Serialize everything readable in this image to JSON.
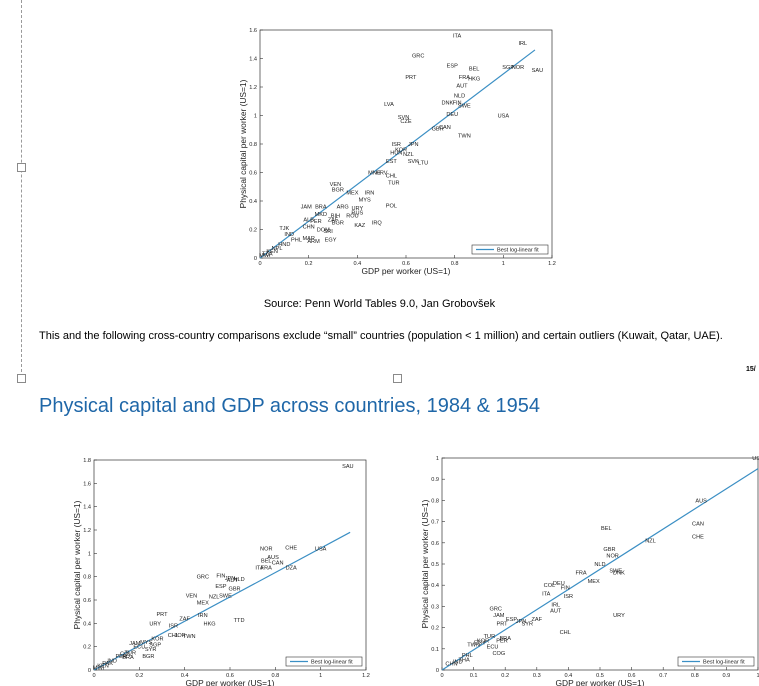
{
  "caption": "Source: Penn World Tables 9.0, Jan Grobovšek",
  "note": "This and the following cross-country comparisons exclude “small” countries (population < 1 million) and certain outliers (Kuwait, Qatar, UAE).",
  "page_number": "15/",
  "heading": "Physical capital and GDP across countries, 1984 & 1954",
  "colors": {
    "fit_line": "#3b8fc4",
    "heading": "#1f67a8"
  },
  "chart_data": [
    {
      "type": "scatter",
      "xlabel": "GDP per worker (US=1)",
      "ylabel": "Physical capital per worker (US=1)",
      "xlim": [
        0,
        1.2
      ],
      "ylim": [
        0,
        1.6
      ],
      "xticks": [
        "0",
        "0.2",
        "0.4",
        "0.6",
        "0.8",
        "1",
        "1.2"
      ],
      "yticks": [
        "0",
        "0.2",
        "0.4",
        "0.6",
        "0.8",
        "1",
        "1.2",
        "1.4",
        "1.6"
      ],
      "legend": "Best log-linear fit",
      "legend_position": "bottom-right",
      "fit": {
        "x": [
          0,
          1.13
        ],
        "y": [
          0,
          1.46
        ]
      },
      "points": [
        {
          "label": "ITA",
          "x": 0.81,
          "y": 1.56
        },
        {
          "label": "IRL",
          "x": 1.08,
          "y": 1.51
        },
        {
          "label": "GRC",
          "x": 0.65,
          "y": 1.42
        },
        {
          "label": "ESP",
          "x": 0.79,
          "y": 1.35
        },
        {
          "label": "BEL",
          "x": 0.88,
          "y": 1.33
        },
        {
          "label": "SGP",
          "x": 1.02,
          "y": 1.34
        },
        {
          "label": "NOR",
          "x": 1.06,
          "y": 1.34
        },
        {
          "label": "SAU",
          "x": 1.14,
          "y": 1.32
        },
        {
          "label": "PRT",
          "x": 0.62,
          "y": 1.27
        },
        {
          "label": "FRA",
          "x": 0.84,
          "y": 1.27
        },
        {
          "label": "HKG",
          "x": 0.88,
          "y": 1.26
        },
        {
          "label": "AUT",
          "x": 0.83,
          "y": 1.21
        },
        {
          "label": "NLD",
          "x": 0.82,
          "y": 1.14
        },
        {
          "label": "LVA",
          "x": 0.53,
          "y": 1.08
        },
        {
          "label": "DNK",
          "x": 0.77,
          "y": 1.09
        },
        {
          "label": "FIN",
          "x": 0.81,
          "y": 1.09
        },
        {
          "label": "SWE",
          "x": 0.84,
          "y": 1.07
        },
        {
          "label": "DEU",
          "x": 0.79,
          "y": 1.01
        },
        {
          "label": "USA",
          "x": 1.0,
          "y": 1.0
        },
        {
          "label": "SVN",
          "x": 0.59,
          "y": 0.99
        },
        {
          "label": "CZE",
          "x": 0.6,
          "y": 0.96
        },
        {
          "label": "GBR",
          "x": 0.73,
          "y": 0.91
        },
        {
          "label": "CAN",
          "x": 0.76,
          "y": 0.92
        },
        {
          "label": "TWN",
          "x": 0.84,
          "y": 0.86
        },
        {
          "label": "ISR",
          "x": 0.56,
          "y": 0.8
        },
        {
          "label": "JPN",
          "x": 0.63,
          "y": 0.8
        },
        {
          "label": "KOR",
          "x": 0.58,
          "y": 0.76
        },
        {
          "label": "HUN",
          "x": 0.56,
          "y": 0.74
        },
        {
          "label": "NZL",
          "x": 0.61,
          "y": 0.73
        },
        {
          "label": "EST",
          "x": 0.54,
          "y": 0.68
        },
        {
          "label": "SVK",
          "x": 0.63,
          "y": 0.68
        },
        {
          "label": "LTU",
          "x": 0.67,
          "y": 0.67
        },
        {
          "label": "MNE",
          "x": 0.47,
          "y": 0.6
        },
        {
          "label": "HRV",
          "x": 0.5,
          "y": 0.6
        },
        {
          "label": "CHL",
          "x": 0.54,
          "y": 0.58
        },
        {
          "label": "TUR",
          "x": 0.55,
          "y": 0.53
        },
        {
          "label": "VEN",
          "x": 0.31,
          "y": 0.52
        },
        {
          "label": "BGR",
          "x": 0.32,
          "y": 0.48
        },
        {
          "label": "MEX",
          "x": 0.38,
          "y": 0.46
        },
        {
          "label": "IRN",
          "x": 0.45,
          "y": 0.46
        },
        {
          "label": "MYS",
          "x": 0.43,
          "y": 0.41
        },
        {
          "label": "JAM",
          "x": 0.19,
          "y": 0.36
        },
        {
          "label": "BRA",
          "x": 0.25,
          "y": 0.36
        },
        {
          "label": "ARG",
          "x": 0.34,
          "y": 0.36
        },
        {
          "label": "URY",
          "x": 0.4,
          "y": 0.35
        },
        {
          "label": "POL",
          "x": 0.54,
          "y": 0.37
        },
        {
          "label": "MKD",
          "x": 0.25,
          "y": 0.31
        },
        {
          "label": "BIH",
          "x": 0.31,
          "y": 0.3
        },
        {
          "label": "ROU",
          "x": 0.38,
          "y": 0.3
        },
        {
          "label": "RUS",
          "x": 0.4,
          "y": 0.32
        },
        {
          "label": "ALB",
          "x": 0.2,
          "y": 0.27
        },
        {
          "label": "PER",
          "x": 0.23,
          "y": 0.26
        },
        {
          "label": "ZAF",
          "x": 0.3,
          "y": 0.27
        },
        {
          "label": "BGR",
          "x": 0.32,
          "y": 0.25
        },
        {
          "label": "KAZ",
          "x": 0.41,
          "y": 0.23
        },
        {
          "label": "IRQ",
          "x": 0.48,
          "y": 0.25
        },
        {
          "label": "TJK",
          "x": 0.1,
          "y": 0.21
        },
        {
          "label": "CHN",
          "x": 0.2,
          "y": 0.22
        },
        {
          "label": "DOM",
          "x": 0.26,
          "y": 0.2
        },
        {
          "label": "SRI",
          "x": 0.28,
          "y": 0.19
        },
        {
          "label": "IND",
          "x": 0.12,
          "y": 0.17
        },
        {
          "label": "PHL",
          "x": 0.15,
          "y": 0.13
        },
        {
          "label": "MAR",
          "x": 0.2,
          "y": 0.14
        },
        {
          "label": "ARM",
          "x": 0.22,
          "y": 0.12
        },
        {
          "label": "EGY",
          "x": 0.29,
          "y": 0.13
        },
        {
          "label": "HND",
          "x": 0.1,
          "y": 0.1
        },
        {
          "label": "NPL",
          "x": 0.07,
          "y": 0.07
        },
        {
          "label": "KEN",
          "x": 0.05,
          "y": 0.05
        },
        {
          "label": "TZA",
          "x": 0.03,
          "y": 0.03
        },
        {
          "label": "MWI",
          "x": 0.02,
          "y": 0.02
        }
      ]
    },
    {
      "type": "scatter",
      "xlabel": "GDP per worker (US=1)",
      "ylabel": "Physical capital per worker (US=1)",
      "xlim": [
        0,
        1.2
      ],
      "ylim": [
        0,
        1.8
      ],
      "xticks": [
        "0",
        "0.2",
        "0.4",
        "0.6",
        "0.8",
        "1",
        "1.2"
      ],
      "yticks": [
        "0",
        "0.2",
        "0.4",
        "0.6",
        "0.8",
        "1",
        "1.2",
        "1.4",
        "1.6",
        "1.8"
      ],
      "legend": "Best log-linear fit",
      "legend_position": "bottom-right",
      "fit": {
        "x": [
          0,
          1.13
        ],
        "y": [
          0,
          1.18
        ]
      },
      "points": [
        {
          "label": "SAU",
          "x": 1.12,
          "y": 1.75
        },
        {
          "label": "NOR",
          "x": 0.76,
          "y": 1.04
        },
        {
          "label": "CHE",
          "x": 0.87,
          "y": 1.05
        },
        {
          "label": "USA",
          "x": 1.0,
          "y": 1.04
        },
        {
          "label": "AUS",
          "x": 0.79,
          "y": 0.97
        },
        {
          "label": "BEL",
          "x": 0.76,
          "y": 0.94
        },
        {
          "label": "CAN",
          "x": 0.81,
          "y": 0.92
        },
        {
          "label": "ITA",
          "x": 0.73,
          "y": 0.88
        },
        {
          "label": "FRA",
          "x": 0.76,
          "y": 0.88
        },
        {
          "label": "DZA",
          "x": 0.87,
          "y": 0.88
        },
        {
          "label": "GRC",
          "x": 0.48,
          "y": 0.8
        },
        {
          "label": "FIN",
          "x": 0.56,
          "y": 0.81
        },
        {
          "label": "JPN",
          "x": 0.6,
          "y": 0.79
        },
        {
          "label": "NLD",
          "x": 0.64,
          "y": 0.78
        },
        {
          "label": "AUT",
          "x": 0.61,
          "y": 0.77
        },
        {
          "label": "ESP",
          "x": 0.56,
          "y": 0.72
        },
        {
          "label": "GBR",
          "x": 0.62,
          "y": 0.7
        },
        {
          "label": "VEN",
          "x": 0.43,
          "y": 0.64
        },
        {
          "label": "NZL",
          "x": 0.53,
          "y": 0.63
        },
        {
          "label": "SWE",
          "x": 0.58,
          "y": 0.64
        },
        {
          "label": "MEX",
          "x": 0.48,
          "y": 0.58
        },
        {
          "label": "PRT",
          "x": 0.3,
          "y": 0.48
        },
        {
          "label": "ZAF",
          "x": 0.4,
          "y": 0.44
        },
        {
          "label": "IRN",
          "x": 0.48,
          "y": 0.47
        },
        {
          "label": "TTD",
          "x": 0.64,
          "y": 0.43
        },
        {
          "label": "HKG",
          "x": 0.51,
          "y": 0.4
        },
        {
          "label": "URY",
          "x": 0.27,
          "y": 0.4
        },
        {
          "label": "ISR",
          "x": 0.35,
          "y": 0.38
        },
        {
          "label": "CHL",
          "x": 0.35,
          "y": 0.3
        },
        {
          "label": "JOR",
          "x": 0.38,
          "y": 0.3
        },
        {
          "label": "TWN",
          "x": 0.42,
          "y": 0.29
        },
        {
          "label": "KOR",
          "x": 0.28,
          "y": 0.27
        },
        {
          "label": "MYS",
          "x": 0.23,
          "y": 0.24
        },
        {
          "label": "SGP",
          "x": 0.27,
          "y": 0.22
        },
        {
          "label": "JAM",
          "x": 0.18,
          "y": 0.23
        },
        {
          "label": "ECU",
          "x": 0.2,
          "y": 0.2
        },
        {
          "label": "SYR",
          "x": 0.25,
          "y": 0.18
        },
        {
          "label": "BGR",
          "x": 0.24,
          "y": 0.12
        },
        {
          "label": "TUR",
          "x": 0.16,
          "y": 0.15
        },
        {
          "label": "COL",
          "x": 0.14,
          "y": 0.14
        },
        {
          "label": "PER",
          "x": 0.12,
          "y": 0.12
        },
        {
          "label": "BRA",
          "x": 0.15,
          "y": 0.11
        },
        {
          "label": "IND",
          "x": 0.08,
          "y": 0.08
        },
        {
          "label": "PAK",
          "x": 0.06,
          "y": 0.06
        },
        {
          "label": "KEN",
          "x": 0.04,
          "y": 0.04
        },
        {
          "label": "MWI",
          "x": 0.02,
          "y": 0.02
        }
      ]
    },
    {
      "type": "scatter",
      "xlabel": "GDP per worker (US=1)",
      "ylabel": "Physical capital per worker (US=1)",
      "xlim": [
        0,
        1.0
      ],
      "ylim": [
        0,
        1.0
      ],
      "xticks": [
        "0",
        "0.1",
        "0.2",
        "0.3",
        "0.4",
        "0.5",
        "0.6",
        "0.7",
        "0.8",
        "0.9",
        "1"
      ],
      "yticks": [
        "0",
        "0.1",
        "0.2",
        "0.3",
        "0.4",
        "0.5",
        "0.6",
        "0.7",
        "0.8",
        "0.9",
        "1"
      ],
      "legend": "Best log-linear fit",
      "legend_position": "bottom-right",
      "fit": {
        "x": [
          0,
          1.0
        ],
        "y": [
          0,
          0.95
        ]
      },
      "points": [
        {
          "label": "USA",
          "x": 1.0,
          "y": 1.0
        },
        {
          "label": "AUS",
          "x": 0.82,
          "y": 0.8
        },
        {
          "label": "CAN",
          "x": 0.81,
          "y": 0.69
        },
        {
          "label": "BEL",
          "x": 0.52,
          "y": 0.67
        },
        {
          "label": "CHE",
          "x": 0.81,
          "y": 0.63
        },
        {
          "label": "NZL",
          "x": 0.66,
          "y": 0.61
        },
        {
          "label": "GBR",
          "x": 0.53,
          "y": 0.57
        },
        {
          "label": "NOR",
          "x": 0.54,
          "y": 0.54
        },
        {
          "label": "NLD",
          "x": 0.5,
          "y": 0.5
        },
        {
          "label": "SWE",
          "x": 0.55,
          "y": 0.47
        },
        {
          "label": "DNK",
          "x": 0.56,
          "y": 0.46
        },
        {
          "label": "FRA",
          "x": 0.44,
          "y": 0.46
        },
        {
          "label": "MEX",
          "x": 0.48,
          "y": 0.42
        },
        {
          "label": "DEU",
          "x": 0.37,
          "y": 0.41
        },
        {
          "label": "COL",
          "x": 0.34,
          "y": 0.4
        },
        {
          "label": "FIN",
          "x": 0.39,
          "y": 0.39
        },
        {
          "label": "ITA",
          "x": 0.33,
          "y": 0.36
        },
        {
          "label": "ISR",
          "x": 0.4,
          "y": 0.35
        },
        {
          "label": "IRL",
          "x": 0.36,
          "y": 0.31
        },
        {
          "label": "AUT",
          "x": 0.36,
          "y": 0.28
        },
        {
          "label": "URY",
          "x": 0.56,
          "y": 0.26
        },
        {
          "label": "GRC",
          "x": 0.17,
          "y": 0.29
        },
        {
          "label": "JAM",
          "x": 0.18,
          "y": 0.26
        },
        {
          "label": "ESP",
          "x": 0.22,
          "y": 0.24
        },
        {
          "label": "ZAF",
          "x": 0.3,
          "y": 0.24
        },
        {
          "label": "SYR",
          "x": 0.27,
          "y": 0.22
        },
        {
          "label": "CHL",
          "x": 0.39,
          "y": 0.18
        },
        {
          "label": "PRT",
          "x": 0.19,
          "y": 0.22
        },
        {
          "label": "JPN",
          "x": 0.25,
          "y": 0.23
        },
        {
          "label": "TUR",
          "x": 0.15,
          "y": 0.16
        },
        {
          "label": "BRA",
          "x": 0.2,
          "y": 0.15
        },
        {
          "label": "KOR",
          "x": 0.13,
          "y": 0.14
        },
        {
          "label": "EGY",
          "x": 0.12,
          "y": 0.13
        },
        {
          "label": "PER",
          "x": 0.19,
          "y": 0.14
        },
        {
          "label": "TWN",
          "x": 0.1,
          "y": 0.12
        },
        {
          "label": "ECU",
          "x": 0.16,
          "y": 0.11
        },
        {
          "label": "PHL",
          "x": 0.08,
          "y": 0.07
        },
        {
          "label": "COG",
          "x": 0.18,
          "y": 0.08
        },
        {
          "label": "THA",
          "x": 0.07,
          "y": 0.05
        },
        {
          "label": "IND",
          "x": 0.05,
          "y": 0.04
        },
        {
          "label": "CHN",
          "x": 0.03,
          "y": 0.03
        }
      ]
    }
  ]
}
